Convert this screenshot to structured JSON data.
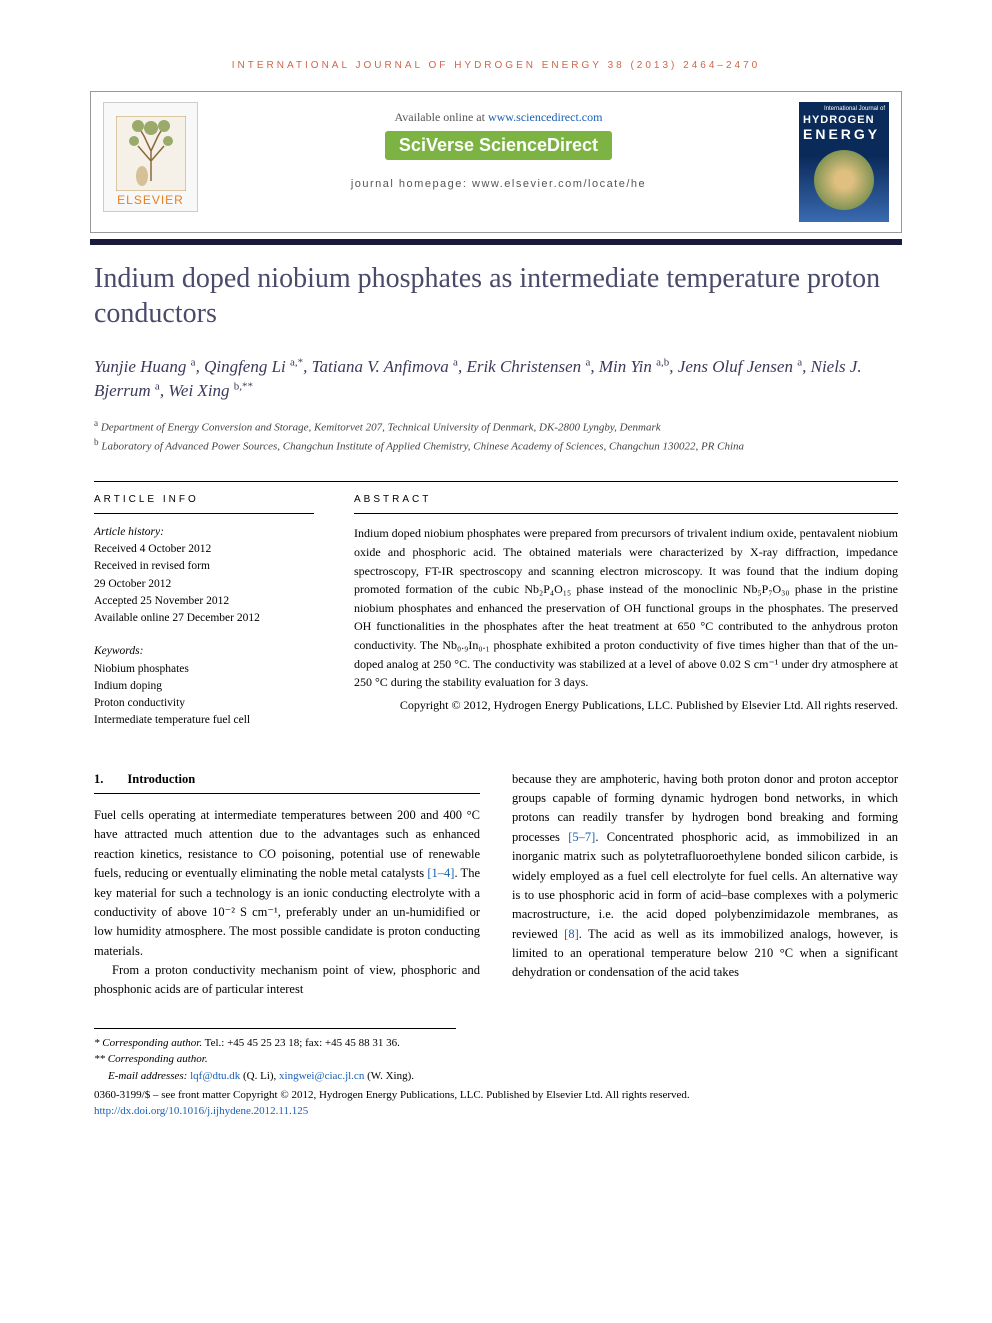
{
  "header": {
    "citation": "INTERNATIONAL JOURNAL OF HYDROGEN ENERGY 38 (2013) 2464–2470"
  },
  "banner": {
    "available_text": "Available online at ",
    "sd_url": "www.sciencedirect.com",
    "sciverse": "SciVerse ScienceDirect",
    "homepage_label": "journal homepage: ",
    "homepage_url": "www.elsevier.com/locate/he",
    "elsevier": "ELSEVIER",
    "cover": {
      "journal": "International Journal of",
      "hydrogen": "HYDROGEN",
      "energy": "ENERGY"
    }
  },
  "title": "Indium doped niobium phosphates as intermediate temperature proton conductors",
  "authors_html": "Yunjie Huang <sup>a</sup>, Qingfeng Li <sup>a,*</sup>, Tatiana V. Anfimova <sup>a</sup>, Erik Christensen <sup>a</sup>, Min Yin <sup>a,b</sup>, Jens Oluf Jensen <sup>a</sup>, Niels J. Bjerrum <sup>a</sup>, Wei Xing <sup>b,**</sup>",
  "affiliations": {
    "a": "Department of Energy Conversion and Storage, Kemitorvet 207, Technical University of Denmark, DK-2800 Lyngby, Denmark",
    "b": "Laboratory of Advanced Power Sources, Changchun Institute of Applied Chemistry, Chinese Academy of Sciences, Changchun 130022, PR China"
  },
  "article_info": {
    "heading": "ARTICLE INFO",
    "history_label": "Article history:",
    "received": "Received 4 October 2012",
    "revised1": "Received in revised form",
    "revised2": "29 October 2012",
    "accepted": "Accepted 25 November 2012",
    "online": "Available online 27 December 2012",
    "keywords_label": "Keywords:",
    "keywords": [
      "Niobium phosphates",
      "Indium doping",
      "Proton conductivity",
      "Intermediate temperature fuel cell"
    ]
  },
  "abstract": {
    "heading": "ABSTRACT",
    "text": "Indium doped niobium phosphates were prepared from precursors of trivalent indium oxide, pentavalent niobium oxide and phosphoric acid. The obtained materials were characterized by X-ray diffraction, impedance spectroscopy, FT-IR spectroscopy and scanning electron microscopy. It was found that the indium doping promoted formation of the cubic Nb₂P₄O₁₅ phase instead of the monoclinic Nb₅P₇O₃₀ phase in the pristine niobium phosphates and enhanced the preservation of OH functional groups in the phosphates. The preserved OH functionalities in the phosphates after the heat treatment at 650 °C contributed to the anhydrous proton conductivity. The Nb₀.₉In₀.₁ phosphate exhibited a proton conductivity of five times higher than that of the un-doped analog at 250 °C. The conductivity was stabilized at a level of above 0.02 S cm⁻¹ under dry atmosphere at 250 °C during the stability evaluation for 3 days.",
    "copyright": "Copyright © 2012, Hydrogen Energy Publications, LLC. Published by Elsevier Ltd. All rights reserved."
  },
  "body": {
    "section_num": "1.",
    "section_title": "Introduction",
    "col1_p1": "Fuel cells operating at intermediate temperatures between 200 and 400 °C have attracted much attention due to the advantages such as enhanced reaction kinetics, resistance to CO poisoning, potential use of renewable fuels, reducing or eventually eliminating the noble metal catalysts ",
    "col1_ref1": "[1–4]",
    "col1_p1b": ". The key material for such a technology is an ionic conducting electrolyte with a conductivity of above 10⁻² S cm⁻¹, preferably under an un-humidified or low humidity atmosphere. The most possible candidate is proton conducting materials.",
    "col1_p2": "From a proton conductivity mechanism point of view, phosphoric and phosphonic acids are of particular interest",
    "col2_p1a": "because they are amphoteric, having both proton donor and proton acceptor groups capable of forming dynamic hydrogen bond networks, in which protons can readily transfer by hydrogen bond breaking and forming processes ",
    "col2_ref1": "[5–7]",
    "col2_p1b": ". Concentrated phosphoric acid, as immobilized in an inorganic matrix such as polytetrafluoroethylene bonded silicon carbide, is widely employed as a fuel cell electrolyte for fuel cells. An alternative way is to use phosphoric acid in form of acid–base complexes with a polymeric macrostructure, i.e. the acid doped polybenzimidazole membranes, as reviewed ",
    "col2_ref2": "[8]",
    "col2_p1c": ". The acid as well as its immobilized analogs, however, is limited to an operational temperature below 210 °C when a significant dehydration or condensation of the acid takes"
  },
  "footnotes": {
    "corr1_label": "* Corresponding author.",
    "corr1_contact": " Tel.: +45 45 25 23 18; fax: +45 45 88 31 36.",
    "corr2_label": "** Corresponding author.",
    "email_label": "E-mail addresses: ",
    "email1": "lqf@dtu.dk",
    "email1_name": " (Q. Li), ",
    "email2": "xingwei@ciac.jl.cn",
    "email2_name": " (W. Xing)."
  },
  "bottom": {
    "line1": "0360-3199/$ – see front matter Copyright © 2012, Hydrogen Energy Publications, LLC. Published by Elsevier Ltd. All rights reserved.",
    "doi": "http://dx.doi.org/10.1016/j.ijhydene.2012.11.125"
  },
  "colors": {
    "header_orange": "#d0664a",
    "title_color": "#4a4a6a",
    "link_blue": "#1a5fb4",
    "sciverse_green": "#7cb342",
    "dark_bar": "#1a1a3a"
  }
}
